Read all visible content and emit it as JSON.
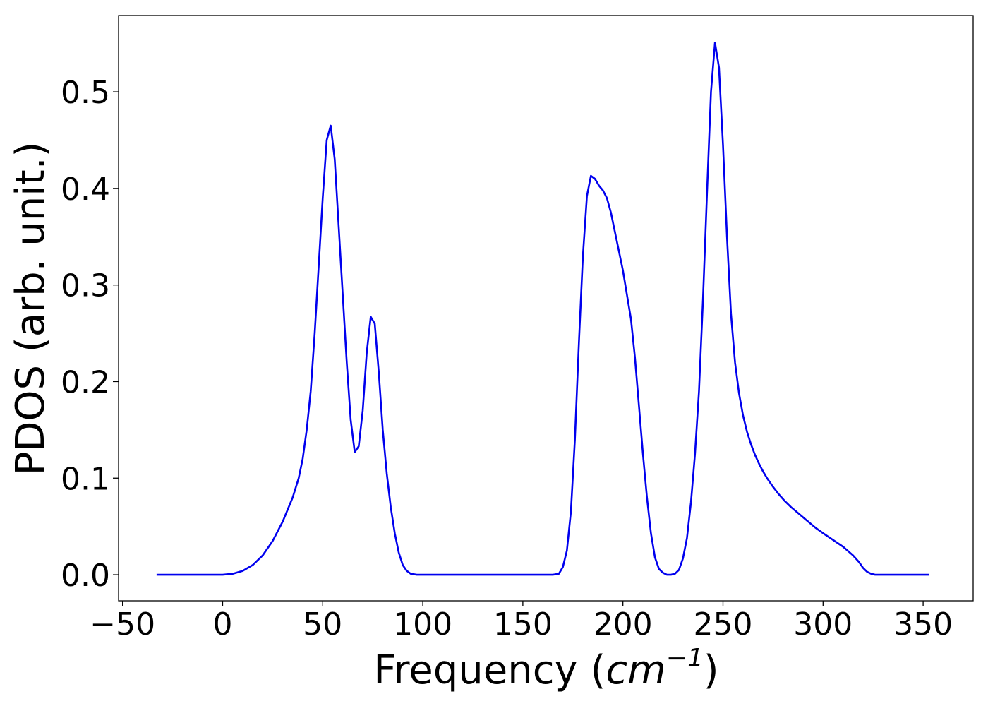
{
  "chart_data": {
    "type": "line",
    "title": "",
    "xlabel_prefix": "Frequency (",
    "xlabel_unit_base": "cm",
    "xlabel_unit_exponent": "−1",
    "xlabel_suffix": ")",
    "ylabel": "PDOS (arb. unit.)",
    "xlim": [
      -52,
      375
    ],
    "ylim": [
      -0.027,
      0.579
    ],
    "xticks": [
      -50,
      0,
      50,
      100,
      150,
      200,
      250,
      300,
      350
    ],
    "xtick_labels": [
      "−50",
      "0",
      "50",
      "100",
      "150",
      "200",
      "250",
      "300",
      "350"
    ],
    "yticks": [
      0.0,
      0.1,
      0.2,
      0.3,
      0.4,
      0.5
    ],
    "ytick_labels": [
      "0.0",
      "0.1",
      "0.2",
      "0.3",
      "0.4",
      "0.5"
    ],
    "grid": false,
    "series": [
      {
        "color": "#0000ee",
        "points": [
          [
            -33,
            0.0
          ],
          [
            -20,
            0.0
          ],
          [
            -10,
            0.0
          ],
          [
            0,
            0.0
          ],
          [
            5,
            0.001
          ],
          [
            10,
            0.004
          ],
          [
            15,
            0.01
          ],
          [
            20,
            0.02
          ],
          [
            25,
            0.035
          ],
          [
            30,
            0.055
          ],
          [
            35,
            0.08
          ],
          [
            38,
            0.1
          ],
          [
            40,
            0.12
          ],
          [
            42,
            0.15
          ],
          [
            44,
            0.19
          ],
          [
            46,
            0.25
          ],
          [
            48,
            0.32
          ],
          [
            50,
            0.39
          ],
          [
            52,
            0.45
          ],
          [
            54,
            0.465
          ],
          [
            56,
            0.43
          ],
          [
            58,
            0.36
          ],
          [
            60,
            0.29
          ],
          [
            62,
            0.22
          ],
          [
            64,
            0.16
          ],
          [
            66,
            0.127
          ],
          [
            68,
            0.133
          ],
          [
            70,
            0.17
          ],
          [
            72,
            0.23
          ],
          [
            74,
            0.267
          ],
          [
            76,
            0.26
          ],
          [
            78,
            0.21
          ],
          [
            80,
            0.15
          ],
          [
            82,
            0.105
          ],
          [
            84,
            0.07
          ],
          [
            86,
            0.043
          ],
          [
            88,
            0.023
          ],
          [
            90,
            0.01
          ],
          [
            92,
            0.004
          ],
          [
            94,
            0.001
          ],
          [
            97,
            0.0
          ],
          [
            110,
            0.0
          ],
          [
            130,
            0.0
          ],
          [
            150,
            0.0
          ],
          [
            165,
            0.0
          ],
          [
            168,
            0.001
          ],
          [
            170,
            0.008
          ],
          [
            172,
            0.025
          ],
          [
            174,
            0.065
          ],
          [
            176,
            0.14
          ],
          [
            178,
            0.24
          ],
          [
            180,
            0.33
          ],
          [
            182,
            0.392
          ],
          [
            184,
            0.413
          ],
          [
            186,
            0.41
          ],
          [
            188,
            0.403
          ],
          [
            190,
            0.398
          ],
          [
            192,
            0.39
          ],
          [
            194,
            0.375
          ],
          [
            196,
            0.355
          ],
          [
            198,
            0.335
          ],
          [
            200,
            0.315
          ],
          [
            202,
            0.29
          ],
          [
            204,
            0.265
          ],
          [
            206,
            0.225
          ],
          [
            208,
            0.175
          ],
          [
            210,
            0.125
          ],
          [
            212,
            0.08
          ],
          [
            214,
            0.043
          ],
          [
            216,
            0.018
          ],
          [
            218,
            0.006
          ],
          [
            220,
            0.002
          ],
          [
            222,
            0.0
          ],
          [
            224,
            0.0
          ],
          [
            226,
            0.001
          ],
          [
            228,
            0.005
          ],
          [
            230,
            0.017
          ],
          [
            232,
            0.038
          ],
          [
            234,
            0.075
          ],
          [
            236,
            0.125
          ],
          [
            238,
            0.19
          ],
          [
            240,
            0.285
          ],
          [
            242,
            0.395
          ],
          [
            244,
            0.5
          ],
          [
            246,
            0.551
          ],
          [
            248,
            0.525
          ],
          [
            250,
            0.445
          ],
          [
            252,
            0.35
          ],
          [
            254,
            0.27
          ],
          [
            256,
            0.22
          ],
          [
            258,
            0.188
          ],
          [
            260,
            0.165
          ],
          [
            262,
            0.148
          ],
          [
            264,
            0.135
          ],
          [
            266,
            0.124
          ],
          [
            268,
            0.115
          ],
          [
            270,
            0.107
          ],
          [
            272,
            0.1
          ],
          [
            275,
            0.091
          ],
          [
            278,
            0.083
          ],
          [
            281,
            0.076
          ],
          [
            284,
            0.07
          ],
          [
            288,
            0.063
          ],
          [
            292,
            0.056
          ],
          [
            296,
            0.049
          ],
          [
            300,
            0.043
          ],
          [
            305,
            0.036
          ],
          [
            310,
            0.029
          ],
          [
            315,
            0.02
          ],
          [
            318,
            0.013
          ],
          [
            320,
            0.007
          ],
          [
            322,
            0.003
          ],
          [
            324,
            0.001
          ],
          [
            326,
            0.0
          ],
          [
            335,
            0.0
          ],
          [
            345,
            0.0
          ],
          [
            353,
            0.0
          ]
        ]
      }
    ]
  }
}
